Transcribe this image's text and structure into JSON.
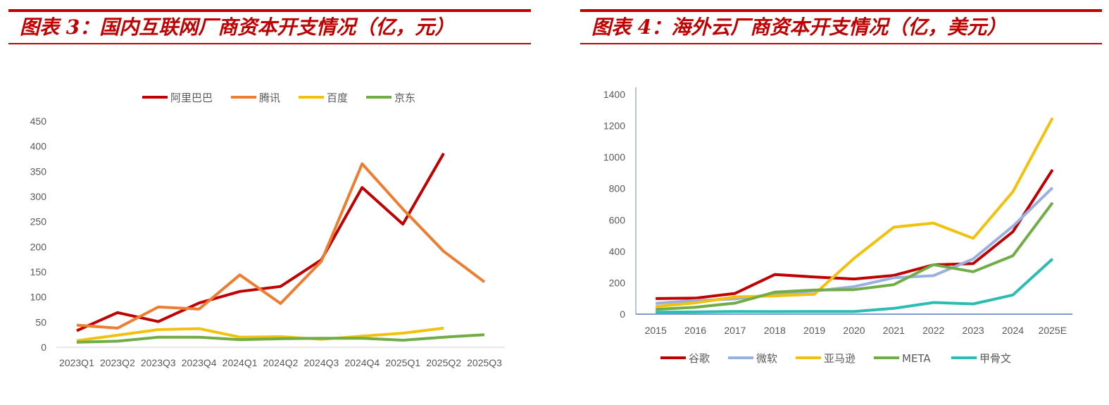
{
  "chart_data": [
    {
      "type": "line",
      "title": "图表 3：国内互联网厂商资本开支情况（亿，元）",
      "categories": [
        "2023Q1",
        "2023Q2",
        "2023Q3",
        "2023Q4",
        "2024Q1",
        "2024Q2",
        "2024Q3",
        "2024Q4",
        "2025Q1",
        "2025Q2",
        "2025Q3"
      ],
      "y_ticks": [
        0,
        50,
        100,
        150,
        200,
        250,
        300,
        350,
        400,
        450
      ],
      "ylim": [
        0,
        450
      ],
      "legend_position": "top",
      "series": [
        {
          "name": "阿里巴巴",
          "color": "#c00000",
          "values": [
            33,
            69,
            51,
            88,
            111,
            121,
            174,
            318,
            245,
            386,
            null
          ]
        },
        {
          "name": "腾讯",
          "color": "#ed7d31",
          "values": [
            44,
            38,
            80,
            76,
            144,
            87,
            171,
            365,
            275,
            191,
            130
          ]
        },
        {
          "name": "百度",
          "color": "#f2c10e",
          "values": [
            13,
            24,
            35,
            37,
            20,
            21,
            16,
            22,
            28,
            38,
            null
          ]
        },
        {
          "name": "京东",
          "color": "#70ad47",
          "values": [
            10,
            12,
            20,
            20,
            15,
            17,
            18,
            18,
            14,
            20,
            25
          ]
        }
      ]
    },
    {
      "type": "line",
      "title": "图表 4：海外云厂商资本开支情况（亿，美元）",
      "categories": [
        "2015",
        "2016",
        "2017",
        "2018",
        "2019",
        "2020",
        "2021",
        "2022",
        "2023",
        "2024",
        "2025E"
      ],
      "y_ticks": [
        0,
        200,
        400,
        600,
        800,
        1000,
        1200,
        1400
      ],
      "ylim": [
        0,
        1400
      ],
      "legend_position": "bottom",
      "series": [
        {
          "name": "谷歌",
          "color": "#c00000",
          "values": [
            99,
            102,
            132,
            252,
            237,
            224,
            247,
            314,
            322,
            525,
            920
          ]
        },
        {
          "name": "微软",
          "color": "#9ab0e0",
          "values": [
            68,
            87,
            97,
            127,
            147,
            175,
            232,
            245,
            352,
            560,
            805
          ]
        },
        {
          "name": "亚马逊",
          "color": "#f2c10e",
          "values": [
            48,
            72,
            110,
            116,
            127,
            356,
            554,
            580,
            483,
            780,
            1250
          ]
        },
        {
          "name": "META",
          "color": "#70ad47",
          "values": [
            30,
            44,
            70,
            140,
            154,
            156,
            188,
            315,
            270,
            372,
            710
          ]
        },
        {
          "name": "甲骨文",
          "color": "#2bbcb4",
          "values": [
            12,
            14,
            17,
            16,
            17,
            17,
            37,
            74,
            65,
            122,
            352
          ]
        }
      ]
    }
  ]
}
